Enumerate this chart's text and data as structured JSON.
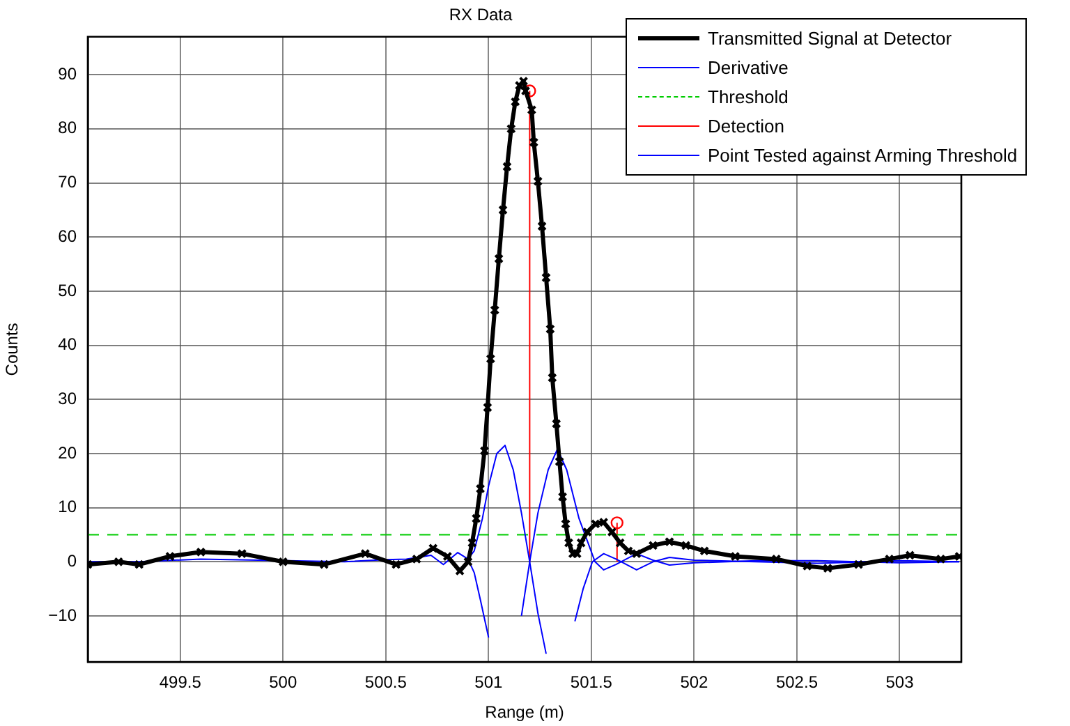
{
  "chart_data": {
    "type": "line",
    "title": "RX Data",
    "xlabel": "Range (m)",
    "ylabel": "Counts",
    "xlim": [
      499.05,
      503.3
    ],
    "ylim": [
      -18.5,
      97
    ],
    "xticks": [
      499.5,
      500,
      500.5,
      501,
      501.5,
      502,
      502.5,
      503
    ],
    "yticks": [
      -10,
      0,
      10,
      20,
      30,
      40,
      50,
      60,
      70,
      80,
      90
    ],
    "grid": true,
    "legend": "top right",
    "series": [
      {
        "name": "Transmitted Signal at Detector",
        "color": "#000000",
        "marker": "cross",
        "x": [
          499.05,
          499.2,
          499.3,
          499.45,
          499.6,
          499.8,
          500.0,
          500.2,
          500.4,
          500.55,
          500.65,
          500.73,
          500.8,
          500.86,
          500.9,
          500.92,
          500.94,
          500.96,
          500.98,
          500.995,
          501.01,
          501.03,
          501.05,
          501.07,
          501.09,
          501.11,
          501.13,
          501.15,
          501.17,
          501.18,
          501.21,
          501.22,
          501.24,
          501.26,
          501.28,
          501.3,
          501.31,
          501.33,
          501.345,
          501.36,
          501.375,
          501.39,
          501.41,
          501.43,
          501.45,
          501.48,
          501.52,
          501.56,
          501.6,
          501.64,
          501.68,
          501.72,
          501.8,
          501.88,
          501.96,
          502.05,
          502.2,
          502.4,
          502.55,
          502.65,
          502.8,
          502.95,
          503.05,
          503.2,
          503.29
        ],
        "values": [
          -0.5,
          0,
          -0.5,
          1,
          1.8,
          1.5,
          0,
          -0.5,
          1.5,
          -0.5,
          0.5,
          2.5,
          1,
          -1.7,
          0,
          3.5,
          8,
          13.5,
          20.5,
          28.5,
          37.5,
          46.5,
          56,
          65,
          73,
          80,
          85,
          88,
          88.8,
          87,
          83.5,
          77.5,
          70.3,
          62,
          52.5,
          43,
          34,
          25.5,
          18.5,
          12,
          7,
          3.5,
          1.5,
          1.5,
          3.5,
          5.5,
          7,
          7.3,
          5.5,
          3.5,
          2,
          1.5,
          3,
          3.7,
          3,
          2,
          1,
          0.5,
          -0.8,
          -1.2,
          -0.5,
          0.5,
          1.2,
          0.5,
          1
        ]
      },
      {
        "name": "Derivative",
        "color": "#0000ff",
        "x": [
          499.05,
          499.3,
          499.6,
          500.3,
          500.5,
          500.6,
          500.72,
          500.78,
          500.85,
          500.9,
          500.93,
          500.97,
          501.0,
          501.04,
          501.08,
          501.12,
          501.16,
          501.2,
          501.24,
          501.28,
          501.33,
          501.42,
          501.46,
          501.505,
          501.56,
          501.62,
          501.72,
          501.8,
          501.88,
          502.0,
          502.3,
          502.6,
          503.0,
          503.29
        ],
        "values": [
          0,
          0,
          0.5,
          0,
          0.4,
          0.5,
          1.2,
          -0.5,
          1.7,
          0.5,
          2,
          8,
          14,
          20,
          21.5,
          17,
          9,
          0,
          -9.5,
          -17,
          null,
          -11,
          -5,
          0,
          1.5,
          0.5,
          -1.5,
          0,
          0.8,
          0.3,
          0,
          -0.3,
          0.2,
          0
        ]
      },
      {
        "name": "Threshold",
        "color": "#00cc00",
        "line_style": "dashed",
        "x": [
          499.05,
          503.3
        ],
        "values": [
          5,
          5
        ]
      },
      {
        "name": "Detection",
        "type": "lollipop",
        "color": "#ff0000",
        "marker": "circle",
        "x": [
          501.2,
          501.625
        ],
        "values": [
          87,
          7.2
        ]
      },
      {
        "name": "Point Tested against Arming Threshold",
        "color": "#0000ff",
        "x": [
          500.9,
          500.93,
          500.96,
          501.0,
          501.07,
          501.16,
          501.2,
          501.24,
          501.29,
          501.335,
          501.38,
          501.44,
          501.518,
          501.56,
          501.62,
          501.72,
          501.8,
          501.88,
          502.0,
          502.3,
          502.6,
          503.0,
          503.29
        ],
        "values": [
          0.5,
          -2,
          -7,
          -14,
          null,
          -10,
          0,
          9,
          17,
          20.8,
          17,
          8,
          0,
          -1.5,
          -0.5,
          1.5,
          0.3,
          -0.6,
          -0.2,
          0.2,
          0.2,
          -0.2,
          0
        ]
      }
    ]
  }
}
